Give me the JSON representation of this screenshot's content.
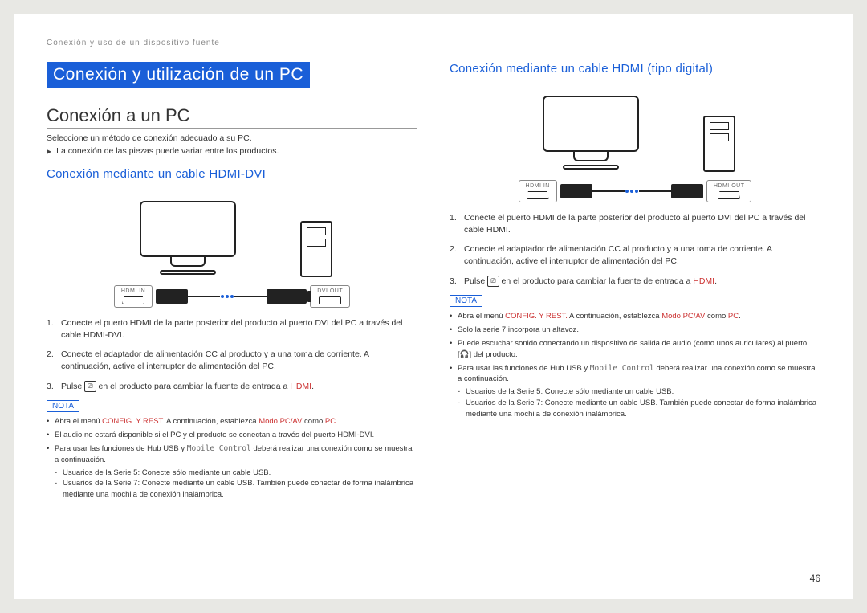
{
  "header_path": "Conexión y uso de un dispositivo fuente",
  "page_number": "46",
  "colors": {
    "highlight_bg": "#1a5fd8",
    "accent": "#1a5fd8",
    "emphasis": "#cc3333",
    "body": "#333333",
    "muted": "#888888"
  },
  "left": {
    "h1": "Conexión y utilización de un PC",
    "h2": "Conexión a un PC",
    "intro": "Seleccione un método de conexión adecuado a su PC.",
    "bullet": "La conexión de las piezas puede variar entre los productos.",
    "h3": "Conexión mediante un cable HDMI-DVI",
    "ports": {
      "left_label": "HDMI IN",
      "right_label": "DVI OUT"
    },
    "steps": [
      "Conecte el puerto HDMI de la parte posterior del producto al puerto DVI del PC a través del cable HDMI-DVI.",
      "Conecte el adaptador de alimentación CC al producto y a una toma de corriente. A continuación, active el interruptor de alimentación del PC."
    ],
    "step3_pre": "Pulse ",
    "step3_post": " en el producto para cambiar la fuente de entrada a ",
    "step3_src": "HDMI",
    "nota_label": "NOTA",
    "notes": {
      "n1_pre": "Abra el menú ",
      "n1_red1": "CONFIG. Y REST.",
      "n1_mid": " A continuación, establezca ",
      "n1_red2": "Modo PC/AV",
      "n1_mid2": " como ",
      "n1_red3": "PC",
      "n2": "El audio no estará disponible si el PC y el producto se conectan a través del puerto HDMI-DVI.",
      "n3_pre": "Para usar las funciones de Hub USB y ",
      "n3_mono": "Mobile Control",
      "n3_post": " deberá realizar una conexión como se muestra a continuación.",
      "sub1": "Usuarios de la Serie 5: Conecte sólo mediante un cable USB.",
      "sub2": "Usuarios de la Serie 7: Conecte mediante un cable USB. También puede conectar de forma inalámbrica mediante una mochila de conexión inalámbrica."
    }
  },
  "right": {
    "h3": "Conexión mediante un cable HDMI (tipo digital)",
    "ports": {
      "left_label": "HDMI IN",
      "right_label": "HDMI OUT"
    },
    "steps": [
      "Conecte el puerto HDMI de la parte posterior del producto al puerto DVI del PC a través del cable HDMI.",
      "Conecte el adaptador de alimentación CC al producto y a una toma de corriente. A continuación, active el interruptor de alimentación del PC."
    ],
    "step3_pre": "Pulse ",
    "step3_post": " en el producto para cambiar la fuente de entrada a ",
    "step3_src": "HDMI",
    "nota_label": "NOTA",
    "notes": {
      "n1_pre": "Abra el menú ",
      "n1_red1": "CONFIG. Y REST.",
      "n1_mid": " A continuación, establezca ",
      "n1_red2": "Modo PC/AV",
      "n1_mid2": " como ",
      "n1_red3": "PC",
      "n2": "Solo la serie 7 incorpora un altavoz.",
      "n3_pre": "Puede escuchar sonido conectando un dispositivo de salida de audio (como unos auriculares) al puerto ",
      "n3_icon": "🎧",
      "n3_post": " del producto.",
      "n4_pre": "Para usar las funciones de Hub USB y ",
      "n4_mono": "Mobile Control",
      "n4_post": " deberá realizar una conexión como se muestra a continuación.",
      "sub1": "Usuarios de la Serie 5: Conecte sólo mediante un cable USB.",
      "sub2": "Usuarios de la Serie 7: Conecte mediante un cable USB. También puede conectar de forma inalámbrica mediante una mochila de conexión inalámbrica."
    }
  }
}
